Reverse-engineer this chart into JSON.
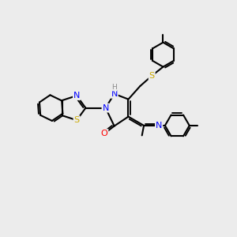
{
  "bg_color": "#ececec",
  "bond_color": "#000000",
  "bond_width": 1.5,
  "atom_colors": {
    "N": "#0000ff",
    "S": "#ccaa00",
    "O": "#ff0000",
    "H": "#888888",
    "C": "#000000"
  },
  "font_size_atom": 8,
  "font_size_h": 6
}
